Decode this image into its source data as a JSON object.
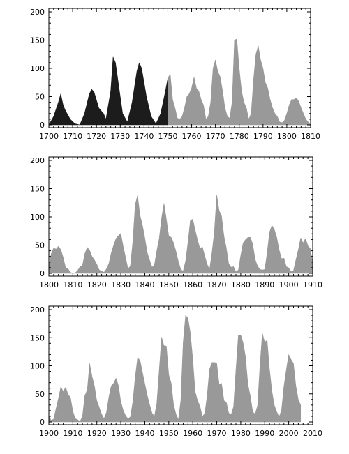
{
  "colors": {
    "pre_1750": "#1c1c1c",
    "post_1750": "#999999",
    "axis": "#000000",
    "background": "#ffffff"
  },
  "chart_data": [
    {
      "type": "area",
      "title": "",
      "xlabel": "",
      "ylabel": "",
      "xlim": [
        1700,
        1810
      ],
      "ylim": [
        0,
        200
      ],
      "xticks": [
        1700,
        1710,
        1720,
        1730,
        1740,
        1750,
        1760,
        1770,
        1780,
        1790,
        1800,
        1810
      ],
      "xtick_labels": [
        "1700",
        "1710",
        "1720",
        "1730",
        "1740",
        "1750",
        "1760",
        "1770",
        "1780",
        "1790",
        "1800",
        "1810"
      ],
      "yticks": [
        0,
        50,
        100,
        150,
        200
      ],
      "ytick_labels": [
        "0",
        "50",
        "100",
        "150",
        "200"
      ],
      "grid": false,
      "series": [
        {
          "fill": "dark",
          "x": [
            1700,
            1702,
            1704,
            1705,
            1706,
            1707,
            1709,
            1711,
            1713,
            1715,
            1717,
            1718,
            1719,
            1721,
            1722,
            1723,
            1724,
            1726,
            1727,
            1728,
            1729,
            1731,
            1733,
            1735,
            1737,
            1738,
            1739,
            1741,
            1743,
            1745,
            1747,
            1749,
            1750
          ],
          "y": [
            0,
            15,
            40,
            55,
            35,
            25,
            10,
            2,
            0,
            20,
            55,
            63,
            58,
            30,
            25,
            20,
            10,
            60,
            120,
            110,
            80,
            20,
            5,
            40,
            95,
            110,
            100,
            50,
            15,
            2,
            20,
            60,
            83
          ]
        },
        {
          "fill": "light",
          "x": [
            1750,
            1751,
            1752,
            1753,
            1754,
            1755,
            1756,
            1757,
            1758,
            1759,
            1760,
            1761,
            1762,
            1763,
            1764,
            1765,
            1766,
            1767,
            1768,
            1769,
            1770,
            1771,
            1772,
            1773,
            1774,
            1775,
            1776,
            1777,
            1778,
            1779,
            1780,
            1781,
            1782,
            1783,
            1784,
            1785,
            1786,
            1787,
            1788,
            1789,
            1790,
            1791,
            1792,
            1793,
            1794,
            1795,
            1796,
            1797,
            1798,
            1799,
            1800,
            1801,
            1802,
            1803,
            1804,
            1805,
            1806,
            1807,
            1808,
            1809,
            1810
          ],
          "y": [
            83,
            90,
            45,
            30,
            12,
            10,
            15,
            30,
            50,
            55,
            65,
            85,
            65,
            60,
            45,
            35,
            10,
            15,
            40,
            100,
            115,
            95,
            85,
            60,
            30,
            15,
            12,
            40,
            150,
            152,
            100,
            60,
            40,
            30,
            10,
            20,
            80,
            125,
            140,
            115,
            100,
            75,
            65,
            45,
            30,
            20,
            15,
            5,
            4,
            8,
            20,
            35,
            45,
            45,
            48,
            42,
            30,
            20,
            10,
            5,
            0
          ]
        }
      ]
    },
    {
      "type": "area",
      "title": "",
      "xlabel": "",
      "ylabel": "",
      "xlim": [
        1800,
        1910
      ],
      "ylim": [
        0,
        200
      ],
      "xticks": [
        1800,
        1810,
        1820,
        1830,
        1840,
        1850,
        1860,
        1870,
        1880,
        1890,
        1900,
        1910
      ],
      "xtick_labels": [
        "1800",
        "1810",
        "1820",
        "1830",
        "1840",
        "1850",
        "1860",
        "1870",
        "1880",
        "1890",
        "1900",
        "1910"
      ],
      "yticks": [
        0,
        50,
        100,
        150,
        200
      ],
      "ytick_labels": [
        "0",
        "50",
        "100",
        "150",
        "200"
      ],
      "grid": false,
      "series": [
        {
          "fill": "light",
          "x": [
            1800,
            1801,
            1802,
            1803,
            1804,
            1805,
            1806,
            1807,
            1808,
            1809,
            1810,
            1811,
            1812,
            1813,
            1814,
            1815,
            1816,
            1817,
            1818,
            1819,
            1820,
            1821,
            1822,
            1823,
            1824,
            1825,
            1826,
            1827,
            1828,
            1829,
            1830,
            1831,
            1832,
            1833,
            1834,
            1835,
            1836,
            1837,
            1838,
            1839,
            1840,
            1841,
            1842,
            1843,
            1844,
            1845,
            1846,
            1847,
            1848,
            1849,
            1850,
            1851,
            1852,
            1853,
            1854,
            1855,
            1856,
            1857,
            1858,
            1859,
            1860,
            1861,
            1862,
            1863,
            1864,
            1865,
            1866,
            1867,
            1868,
            1869,
            1870,
            1871,
            1872,
            1873,
            1874,
            1875,
            1876,
            1877,
            1878,
            1879,
            1880,
            1881,
            1882,
            1883,
            1884,
            1885,
            1886,
            1887,
            1888,
            1889,
            1890,
            1891,
            1892,
            1893,
            1894,
            1895,
            1896,
            1897,
            1898,
            1899,
            1900,
            1901,
            1902,
            1903,
            1904,
            1905,
            1906,
            1907,
            1908,
            1909,
            1910
          ],
          "y": [
            14,
            35,
            45,
            43,
            48,
            42,
            28,
            10,
            8,
            2,
            0,
            1,
            5,
            12,
            14,
            35,
            46,
            41,
            30,
            24,
            16,
            6,
            4,
            2,
            8,
            17,
            36,
            50,
            62,
            67,
            71,
            48,
            28,
            8,
            13,
            57,
            122,
            138,
            103,
            86,
            63,
            37,
            24,
            11,
            15,
            40,
            62,
            98,
            124,
            96,
            66,
            64,
            54,
            39,
            21,
            7,
            4,
            22,
            55,
            94,
            96,
            77,
            59,
            44,
            47,
            31,
            16,
            7,
            37,
            74,
            139,
            111,
            102,
            66,
            45,
            17,
            11,
            12,
            3,
            6,
            32,
            54,
            60,
            64,
            64,
            52,
            25,
            13,
            7,
            6,
            7,
            36,
            73,
            85,
            78,
            64,
            42,
            26,
            27,
            12,
            10,
            3,
            5,
            24,
            42,
            63,
            54,
            62,
            49,
            44,
            19
          ]
        }
      ]
    },
    {
      "type": "area",
      "title": "",
      "xlabel": "",
      "ylabel": "",
      "xlim": [
        1900,
        2010
      ],
      "ylim": [
        0,
        200
      ],
      "xticks": [
        1900,
        1910,
        1920,
        1930,
        1940,
        1950,
        1960,
        1970,
        1980,
        1990,
        2000,
        2010
      ],
      "xtick_labels": [
        "1900",
        "1910",
        "1920",
        "1930",
        "1940",
        "1950",
        "1960",
        "1970",
        "1980",
        "1990",
        "2000",
        "2010"
      ],
      "yticks": [
        0,
        50,
        100,
        150,
        200
      ],
      "ytick_labels": [
        "0",
        "50",
        "100",
        "150",
        "200"
      ],
      "grid": false,
      "series": [
        {
          "fill": "light",
          "x": [
            1900,
            1901,
            1902,
            1903,
            1904,
            1905,
            1906,
            1907,
            1908,
            1909,
            1910,
            1911,
            1912,
            1913,
            1914,
            1915,
            1916,
            1917,
            1918,
            1919,
            1920,
            1921,
            1922,
            1923,
            1924,
            1925,
            1926,
            1927,
            1928,
            1929,
            1930,
            1931,
            1932,
            1933,
            1934,
            1935,
            1936,
            1937,
            1938,
            1939,
            1940,
            1941,
            1942,
            1943,
            1944,
            1945,
            1946,
            1947,
            1948,
            1949,
            1950,
            1951,
            1952,
            1953,
            1954,
            1955,
            1956,
            1957,
            1958,
            1959,
            1960,
            1961,
            1962,
            1963,
            1964,
            1965,
            1966,
            1967,
            1968,
            1969,
            1970,
            1971,
            1972,
            1973,
            1974,
            1975,
            1976,
            1977,
            1978,
            1979,
            1980,
            1981,
            1982,
            1983,
            1984,
            1985,
            1986,
            1987,
            1988,
            1989,
            1990,
            1991,
            1992,
            1993,
            1994,
            1995,
            1996,
            1997,
            1998,
            1999,
            2000,
            2001,
            2002,
            2003,
            2004,
            2005
          ],
          "y": [
            10,
            3,
            5,
            24,
            42,
            63,
            54,
            62,
            49,
            44,
            19,
            6,
            4,
            1,
            10,
            47,
            57,
            104,
            81,
            64,
            38,
            26,
            14,
            6,
            17,
            44,
            64,
            69,
            78,
            65,
            36,
            21,
            11,
            6,
            9,
            36,
            80,
            114,
            110,
            89,
            68,
            48,
            31,
            16,
            10,
            33,
            93,
            151,
            136,
            135,
            84,
            69,
            31,
            14,
            4,
            38,
            142,
            190,
            185,
            159,
            112,
            54,
            38,
            28,
            10,
            15,
            47,
            94,
            106,
            106,
            105,
            67,
            69,
            38,
            35,
            16,
            13,
            27,
            93,
            155,
            155,
            141,
            116,
            67,
            46,
            18,
            14,
            29,
            100,
            158,
            142,
            146,
            94,
            55,
            30,
            18,
            9,
            21,
            64,
            93,
            120,
            111,
            104,
            64,
            40,
            30
          ]
        }
      ]
    }
  ]
}
